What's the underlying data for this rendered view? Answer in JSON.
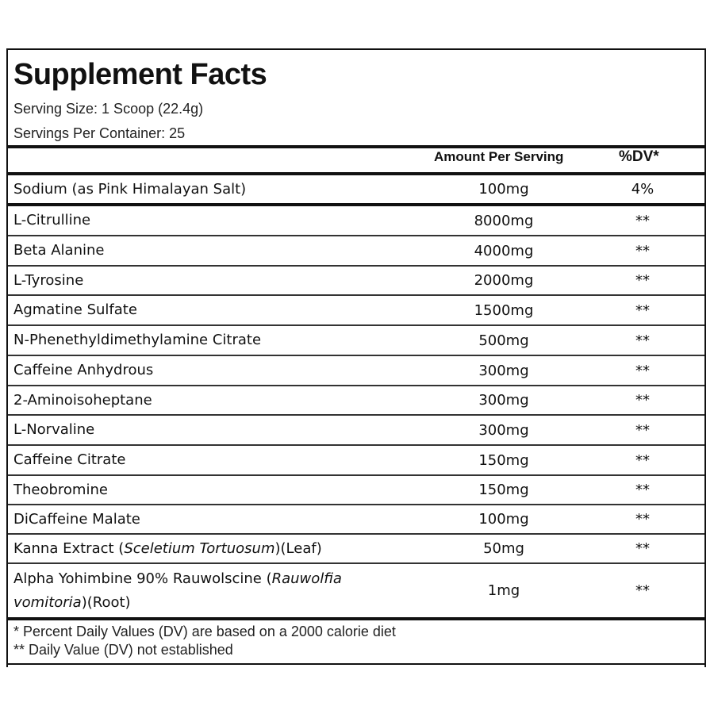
{
  "title": "Supplement Facts",
  "serving_size": "Serving Size: 1 Scoop (22.4g)",
  "servings_per_container": "Servings Per Container: 25",
  "header": {
    "amount": "Amount Per Serving",
    "dv": "%DV*"
  },
  "rows": [
    {
      "name": [
        {
          "text": "Sodium (as Pink Himalayan Salt)",
          "italic": false
        }
      ],
      "amount": "100mg",
      "dv": "4%"
    },
    {
      "name": [
        {
          "text": "L-Citrulline",
          "italic": false
        }
      ],
      "amount": "8000mg",
      "dv": "**"
    },
    {
      "name": [
        {
          "text": "Beta Alanine",
          "italic": false
        }
      ],
      "amount": "4000mg",
      "dv": "**"
    },
    {
      "name": [
        {
          "text": "L-Tyrosine",
          "italic": false
        }
      ],
      "amount": "2000mg",
      "dv": "**"
    },
    {
      "name": [
        {
          "text": "Agmatine Sulfate",
          "italic": false
        }
      ],
      "amount": "1500mg",
      "dv": "**"
    },
    {
      "name": [
        {
          "text": "N-Phenethyldimethylamine Citrate",
          "italic": false
        }
      ],
      "amount": "500mg",
      "dv": "**"
    },
    {
      "name": [
        {
          "text": "Caffeine Anhydrous",
          "italic": false
        }
      ],
      "amount": "300mg",
      "dv": "**"
    },
    {
      "name": [
        {
          "text": "2-Aminoisoheptane",
          "italic": false
        }
      ],
      "amount": "300mg",
      "dv": "**"
    },
    {
      "name": [
        {
          "text": "L-Norvaline",
          "italic": false
        }
      ],
      "amount": "300mg",
      "dv": "**"
    },
    {
      "name": [
        {
          "text": "Caffeine Citrate",
          "italic": false
        }
      ],
      "amount": "150mg",
      "dv": "**"
    },
    {
      "name": [
        {
          "text": "Theobromine",
          "italic": false
        }
      ],
      "amount": "150mg",
      "dv": "**"
    },
    {
      "name": [
        {
          "text": "DiCaffeine Malate",
          "italic": false
        }
      ],
      "amount": "100mg",
      "dv": "**"
    },
    {
      "name": [
        {
          "text": "Kanna Extract (",
          "italic": false
        },
        {
          "text": "Sceletium Tortuosum",
          "italic": true
        },
        {
          "text": ")(Leaf)",
          "italic": false
        }
      ],
      "amount": "50mg",
      "dv": "**"
    },
    {
      "name": [
        {
          "text": "Alpha Yohimbine 90% Rauwolscine (",
          "italic": false
        },
        {
          "text": "Rauwolfia vomitoria",
          "italic": true
        },
        {
          "text": ")(Root)",
          "italic": false
        }
      ],
      "amount": "1mg",
      "dv": "**"
    }
  ],
  "footnotes": [
    "* Percent Daily Values (DV) are based on a 2000 calorie diet",
    "** Daily Value (DV) not established"
  ]
}
